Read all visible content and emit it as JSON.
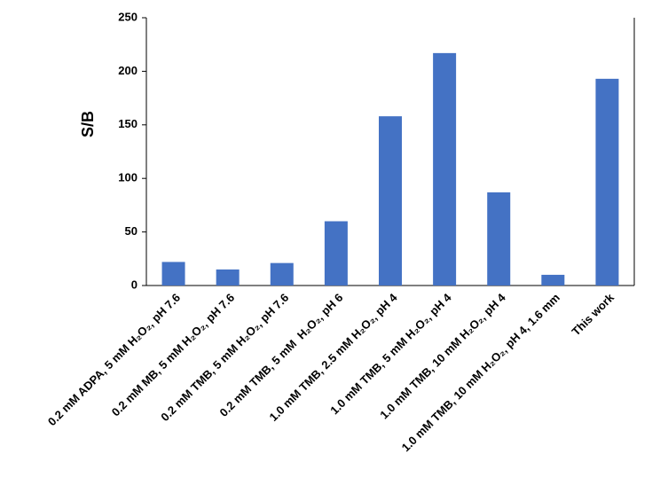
{
  "chart_data": {
    "type": "bar",
    "y_label": "S/B",
    "categories": [
      "0.2 mM ADPA, 5 mM H₂O₂, pH 7.6",
      "0.2 mM MB, 5 mM H₂O₂, pH 7.6",
      "0.2 mM TMB, 5 mM H₂O₂, pH 7.6",
      "0.2 mM TMB, 5 mM  H₂O₂, pH 6",
      "1.0 mM TMB, 2.5 mM H₂O₂, pH 4",
      "1.0 mM TMB, 5 mM H₂O₂, pH 4",
      "1.0 mM TMB, 10 mM H₂O₂, pH 4",
      "1.0 mM TMB, 10 mM H₂O₂, pH 4, 1.6 mm",
      "This work"
    ],
    "values": [
      22,
      15,
      21,
      60,
      158,
      217,
      87,
      10,
      193
    ],
    "color": "#4472c4",
    "ylim": [
      0,
      250
    ],
    "yticks": [
      0,
      50,
      100,
      150,
      200,
      250
    ]
  }
}
